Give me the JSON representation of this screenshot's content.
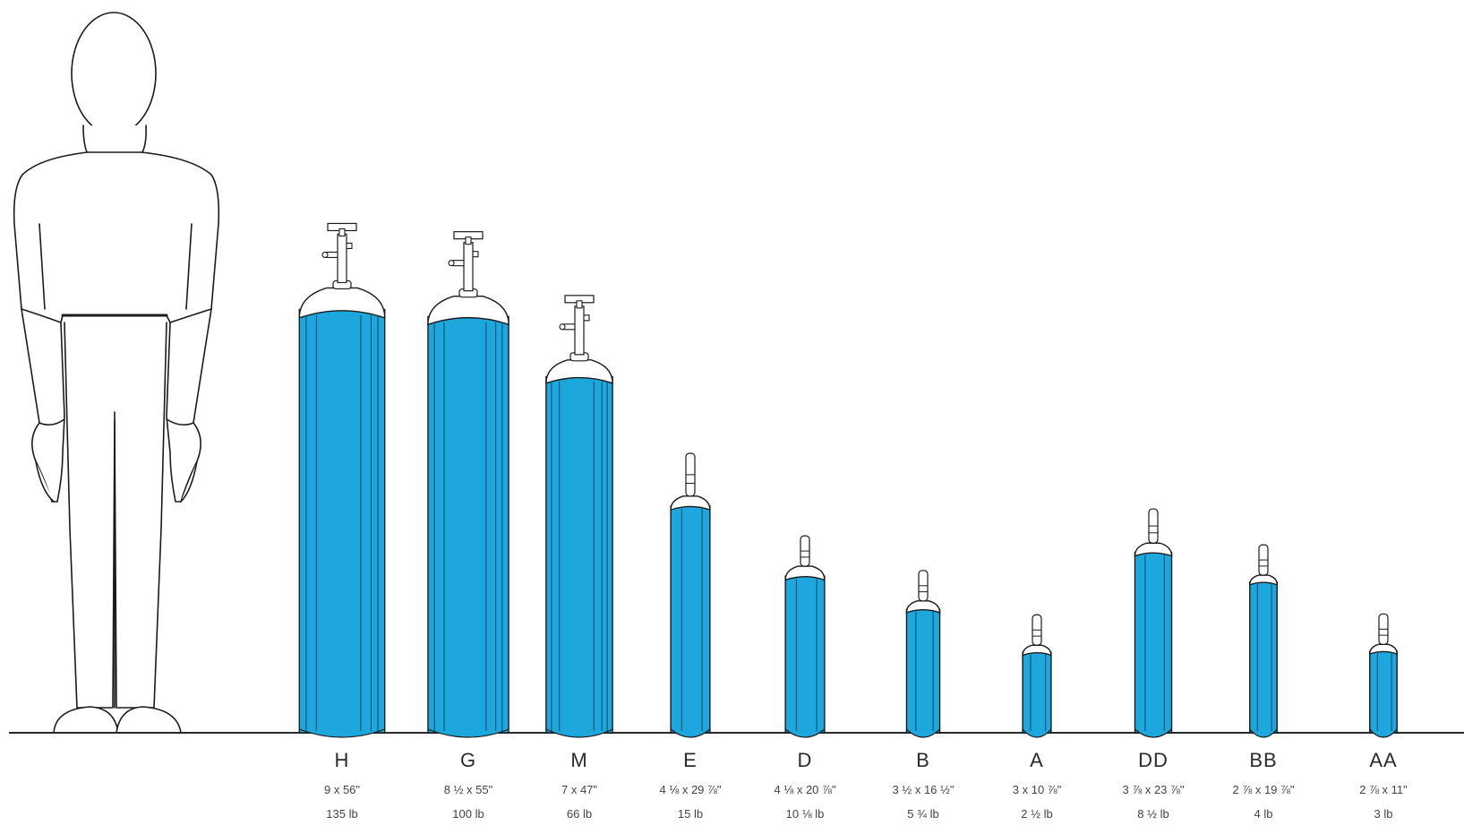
{
  "colors": {
    "cylinder_fill": "#1ea7dd",
    "cylinder_dark": "#0d4f73",
    "outline": "#1b1b1b",
    "ground": "#2a2a2a"
  },
  "figure": {
    "icon": "standing-person-icon"
  },
  "cylinders": [
    {
      "size": "H",
      "dims": "9 x 56\"",
      "weight": "135 lb",
      "height_in": 56,
      "diameter_in": 9,
      "valve": "full"
    },
    {
      "size": "G",
      "dims": "8 ½ x 55\"",
      "weight": "100 lb",
      "height_in": 55,
      "diameter_in": 8.5,
      "valve": "full"
    },
    {
      "size": "M",
      "dims": "7 x 47\"",
      "weight": "66 lb",
      "height_in": 47,
      "diameter_in": 7,
      "valve": "full"
    },
    {
      "size": "E",
      "dims": "4 ⅛ x 29 ⅞\"",
      "weight": "15 lb",
      "height_in": 29.875,
      "diameter_in": 4.125,
      "valve": "post"
    },
    {
      "size": "D",
      "dims": "4 ⅛ x 20 ⅞\"",
      "weight": "10 ⅛ lb",
      "height_in": 20.875,
      "diameter_in": 4.125,
      "valve": "post"
    },
    {
      "size": "B",
      "dims": "3 ½ x 16 ½\"",
      "weight": "5 ¾ lb",
      "height_in": 16.5,
      "diameter_in": 3.5,
      "valve": "post"
    },
    {
      "size": "A",
      "dims": "3 x 10 ⅞\"",
      "weight": "2 ½ lb",
      "height_in": 10.875,
      "diameter_in": 3,
      "valve": "post"
    },
    {
      "size": "DD",
      "dims": "3 ⅞ x 23 ⅞\"",
      "weight": "8 ½ lb",
      "height_in": 23.875,
      "diameter_in": 3.875,
      "valve": "post"
    },
    {
      "size": "BB",
      "dims": "2 ⅞ x 19 ⅞\"",
      "weight": "4 lb",
      "height_in": 19.875,
      "diameter_in": 2.875,
      "valve": "post"
    },
    {
      "size": "AA",
      "dims": "2 ⅞ x 11\"",
      "weight": "3 lb",
      "height_in": 11,
      "diameter_in": 2.875,
      "valve": "post"
    }
  ]
}
